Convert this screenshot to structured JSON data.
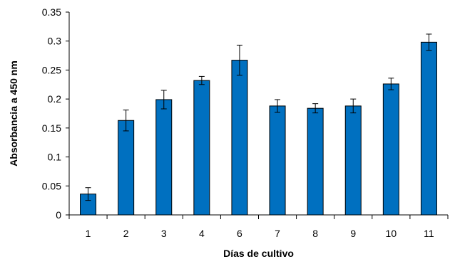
{
  "chart_data": {
    "type": "bar",
    "title": "",
    "xlabel": "Días de cultivo",
    "ylabel": "Absorbancia a 450 nm",
    "categories": [
      "1",
      "2",
      "3",
      "4",
      "6",
      "7",
      "8",
      "9",
      "10",
      "11"
    ],
    "values": [
      0.036,
      0.163,
      0.199,
      0.232,
      0.267,
      0.188,
      0.184,
      0.188,
      0.226,
      0.298
    ],
    "errors": [
      0.011,
      0.018,
      0.016,
      0.007,
      0.026,
      0.011,
      0.008,
      0.012,
      0.01,
      0.014
    ],
    "ylim": [
      0,
      0.35
    ],
    "yticks": [
      "0",
      "0.05",
      "0.1",
      "0.15",
      "0.2",
      "0.25",
      "0.3",
      "0.35"
    ],
    "grid": false,
    "legend": "none",
    "bar_color": "#0070C0"
  }
}
